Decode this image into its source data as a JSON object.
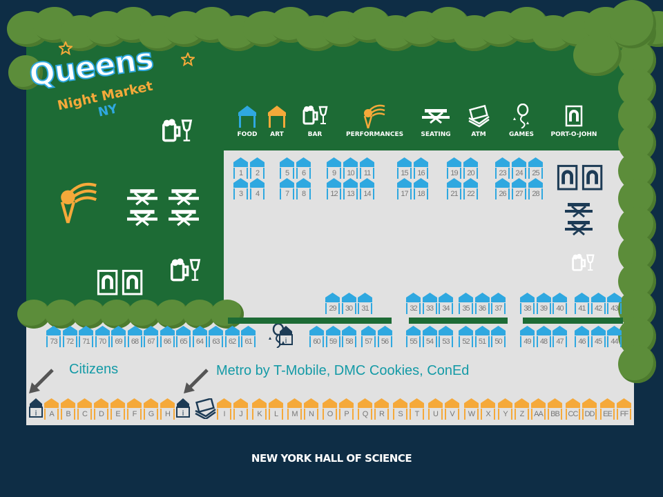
{
  "logo": {
    "line1": "Queens",
    "line2": "Night Market",
    "line3": "NY"
  },
  "legend": [
    {
      "label": "FOOD",
      "icon": "food-tent-icon"
    },
    {
      "label": "ART",
      "icon": "art-tent-icon"
    },
    {
      "label": "BAR",
      "icon": "beer-wine-icon"
    },
    {
      "label": "PERFORMANCES",
      "icon": "microphone-icon"
    },
    {
      "label": "SEATING",
      "icon": "picnic-table-icon"
    },
    {
      "label": "ATM",
      "icon": "cash-icon"
    },
    {
      "label": "GAMES",
      "icon": "balloon-icon"
    },
    {
      "label": "PORT-O-JOHN",
      "icon": "toilet-icon"
    }
  ],
  "colors": {
    "food": "#2fa8e0",
    "art": "#f5a93a",
    "park_green": "#1d6b35",
    "tree": "#5c8d3a",
    "background": "#0e2d45",
    "ground": "#e1e1e1",
    "sponsor_text": "#149aa6"
  },
  "booths": {
    "top_upper": [
      [
        "1",
        "2"
      ],
      [
        "5",
        "6"
      ],
      [
        "9",
        "10",
        "11"
      ],
      [
        "15",
        "16"
      ],
      [
        "19",
        "20"
      ],
      [
        "23",
        "24",
        "25"
      ]
    ],
    "top_lower": [
      [
        "3",
        "4"
      ],
      [
        "7",
        "8"
      ],
      [
        "12",
        "13",
        "14"
      ],
      [
        "17",
        "18"
      ],
      [
        "21",
        "22"
      ],
      [
        "26",
        "27",
        "28"
      ]
    ],
    "middle": [
      [
        "29",
        "30",
        "31"
      ],
      [
        "32",
        "33",
        "34"
      ],
      [
        "35",
        "36",
        "37"
      ],
      [
        "38",
        "39",
        "40"
      ],
      [
        "41",
        "42",
        "43"
      ]
    ],
    "lower": [
      [
        "73",
        "72",
        "71",
        "70",
        "69",
        "68",
        "67",
        "66",
        "65",
        "64",
        "63",
        "62",
        "61"
      ],
      [
        "60",
        "59",
        "58"
      ],
      [
        "57",
        "56"
      ],
      [
        "55",
        "54",
        "53"
      ],
      [
        "52",
        "51",
        "50"
      ],
      [
        "49",
        "48",
        "47"
      ],
      [
        "46",
        "45",
        "44"
      ]
    ],
    "art": [
      [
        "A",
        "B",
        "C"
      ],
      [
        "D",
        "E",
        "F"
      ],
      [
        "G",
        "H"
      ],
      [
        "I",
        "J"
      ],
      [
        "K",
        "L"
      ],
      [
        "M",
        "N"
      ],
      [
        "O",
        "P"
      ],
      [
        "Q",
        "R"
      ],
      [
        "S",
        "T"
      ],
      [
        "U",
        "V"
      ],
      [
        "W",
        "X"
      ],
      [
        "Y",
        "Z"
      ],
      [
        "AA",
        "BB"
      ],
      [
        "CC",
        "DD"
      ],
      [
        "EE",
        "FF"
      ]
    ]
  },
  "sponsors": {
    "left": "Citizens",
    "right": "Metro by T-Mobile, DMC Cookies, ConEd"
  },
  "footer": "NEW YORK HALL OF SCIENCE"
}
